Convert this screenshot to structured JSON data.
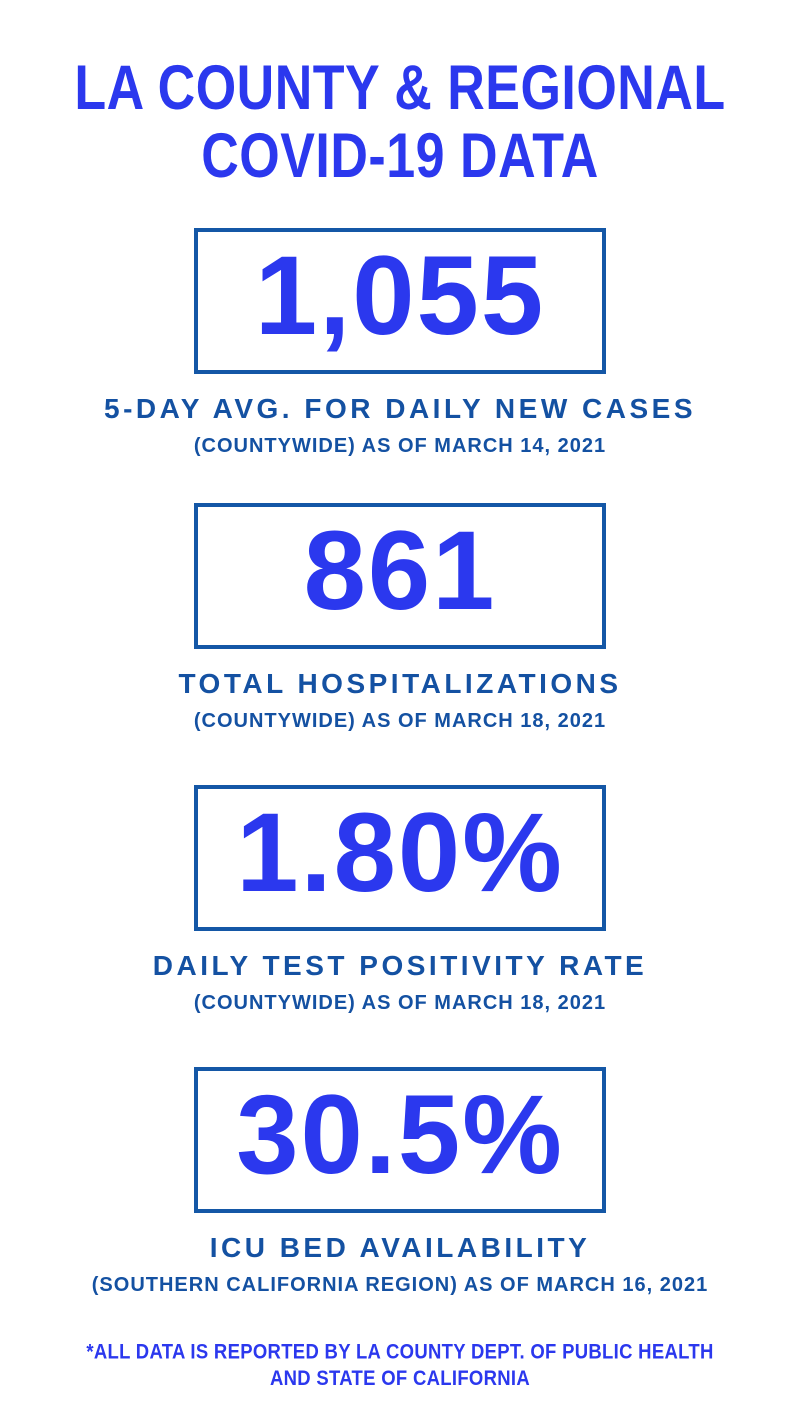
{
  "title": {
    "line1": "LA COUNTY & REGIONAL",
    "line2": "COVID-19 DATA"
  },
  "stats": [
    {
      "value": "1,055",
      "label": "5-DAY AVG. FOR DAILY NEW CASES",
      "sublabel": "(COUNTYWIDE) AS OF MARCH 14, 2021"
    },
    {
      "value": "861",
      "label": "TOTAL HOSPITALIZATIONS",
      "sublabel": "(COUNTYWIDE) AS OF MARCH 18, 2021"
    },
    {
      "value": "1.80%",
      "label": "DAILY TEST POSITIVITY RATE",
      "sublabel": "(COUNTYWIDE) AS OF MARCH 18, 2021"
    },
    {
      "value": "30.5%",
      "label": "ICU BED AVAILABILITY",
      "sublabel": "(SOUTHERN CALIFORNIA REGION) AS OF MARCH 16, 2021"
    }
  ],
  "footer": {
    "line1": "*ALL DATA IS REPORTED BY LA COUNTY DEPT. OF PUBLIC HEALTH",
    "line2": "AND STATE OF CALIFORNIA"
  },
  "colors": {
    "accent_bright": "#2B38EE",
    "accent_navy": "#1451A2",
    "border_navy": "#1457A6",
    "background": "#FFFFFF"
  }
}
